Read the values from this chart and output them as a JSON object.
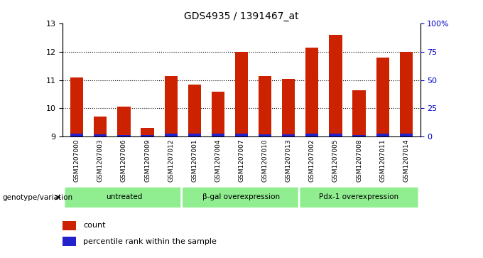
{
  "title": "GDS4935 / 1391467_at",
  "samples": [
    "GSM1207000",
    "GSM1207003",
    "GSM1207006",
    "GSM1207009",
    "GSM1207012",
    "GSM1207001",
    "GSM1207004",
    "GSM1207007",
    "GSM1207010",
    "GSM1207013",
    "GSM1207002",
    "GSM1207005",
    "GSM1207008",
    "GSM1207011",
    "GSM1207014"
  ],
  "count_values": [
    11.1,
    9.7,
    10.05,
    9.3,
    11.15,
    10.85,
    10.6,
    12.0,
    11.15,
    11.05,
    12.15,
    12.6,
    10.65,
    11.8,
    12.0
  ],
  "percentile_values": [
    9.1,
    9.08,
    9.06,
    9.06,
    9.1,
    9.12,
    9.1,
    9.1,
    9.08,
    9.09,
    9.12,
    9.12,
    9.06,
    9.1,
    9.1
  ],
  "bar_bottom": 9.0,
  "ylim_left": [
    9.0,
    13.0
  ],
  "ylim_right": [
    0,
    100
  ],
  "yticks_left": [
    9,
    10,
    11,
    12,
    13
  ],
  "yticks_right": [
    0,
    25,
    50,
    75,
    100
  ],
  "yticklabels_right": [
    "0",
    "25",
    "50",
    "75",
    "100%"
  ],
  "groups": [
    {
      "label": "untreated",
      "start": 0,
      "end": 5
    },
    {
      "label": "β-gal overexpression",
      "start": 5,
      "end": 10
    },
    {
      "label": "Pdx-1 overexpression",
      "start": 10,
      "end": 15
    }
  ],
  "group_color": "#90EE90",
  "bar_color_red": "#CC2200",
  "bar_color_blue": "#2222CC",
  "bar_width": 0.55,
  "xlabel_group": "genotype/variation",
  "legend_count": "count",
  "legend_pct": "percentile rank within the sample",
  "title_fontsize": 10,
  "axis_bg_color": "#c8c8c8",
  "figure_bg": "#ffffff"
}
